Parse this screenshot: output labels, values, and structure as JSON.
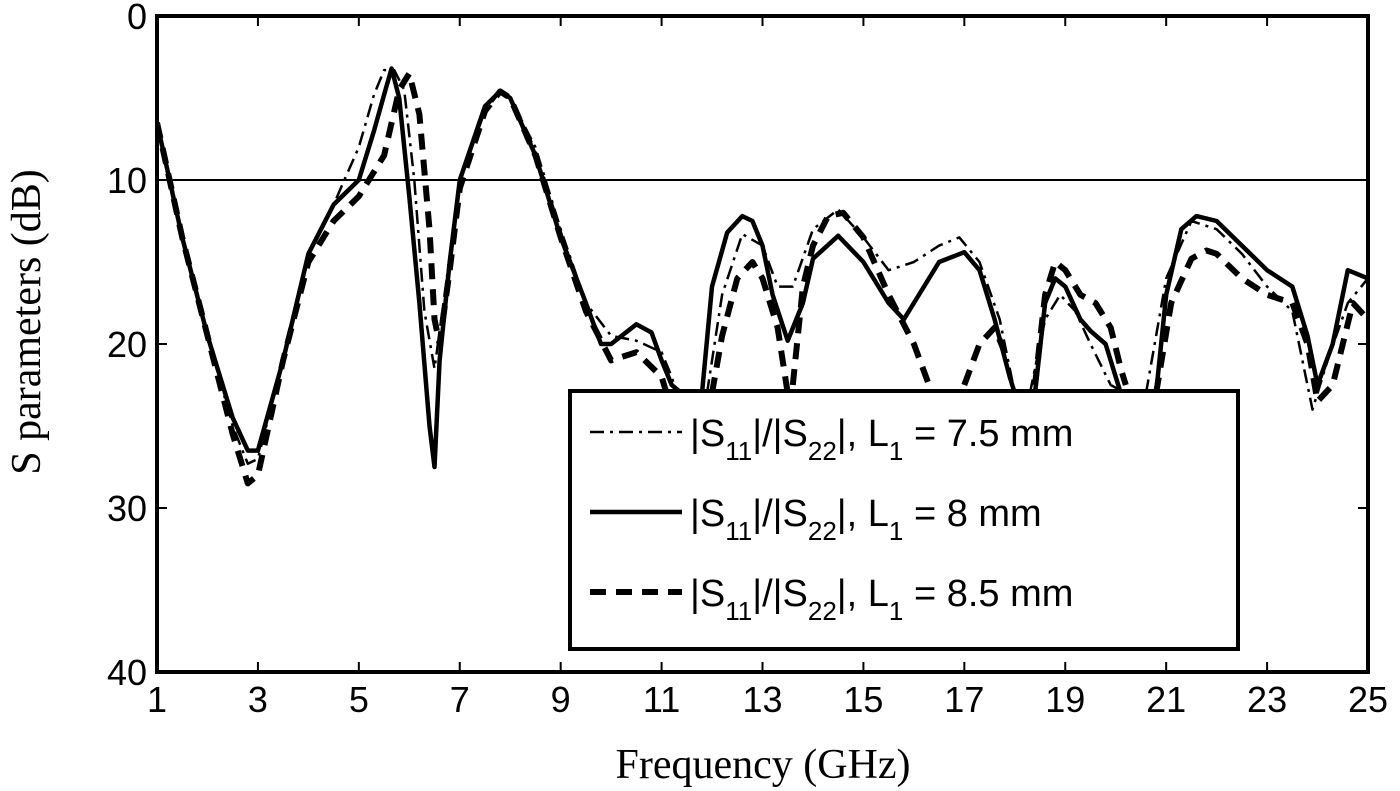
{
  "chart_data": {
    "type": "line",
    "xlabel": "Frequency (GHz)",
    "ylabel": "S  parameters (dB)",
    "xlim": [
      1,
      25
    ],
    "ylim": [
      0,
      40
    ],
    "y_axis_inverted": true,
    "xticks": [
      "1",
      "3",
      "5",
      "7",
      "9",
      "11",
      "13",
      "15",
      "17",
      "19",
      "21",
      "23",
      "25"
    ],
    "yticks": [
      "0",
      "10",
      "20",
      "30",
      "40"
    ],
    "reference_line_y": 10,
    "grid": false,
    "legend_position": "bottom-right",
    "series": [
      {
        "name": "|S11|/|S22|, L1 = 7.5 mm",
        "legend_parts": {
          "a": "|S",
          "a_sub": "11",
          "b": "|/|S",
          "b_sub": "22",
          "c": "|, L",
          "c_sub": "1",
          "d": " = 7.5 mm"
        },
        "style": "dashdot",
        "x": [
          1.0,
          1.5,
          2.0,
          2.5,
          2.8,
          3.0,
          3.5,
          4.0,
          4.5,
          5.0,
          5.3,
          5.5,
          5.7,
          5.9,
          6.1,
          6.3,
          6.5,
          6.7,
          7.0,
          7.5,
          7.8,
          8.0,
          8.5,
          9.0,
          9.5,
          10.0,
          10.5,
          11.0,
          11.2,
          11.3
        ],
        "y": [
          6.5,
          13.5,
          19.5,
          25.0,
          27.3,
          27.0,
          21.0,
          14.5,
          11.5,
          8.0,
          4.8,
          3.3,
          3.3,
          4.5,
          10.0,
          18.0,
          21.5,
          17.0,
          10.0,
          5.8,
          4.6,
          5.0,
          8.0,
          13.0,
          17.5,
          19.5,
          19.8,
          20.5,
          22.0,
          23.0
        ]
      },
      {
        "name": "|S11|/|S22|, L1 = 7.5 mm (continued)",
        "style": "dashdot",
        "x": [
          11.9,
          12.2,
          12.6,
          13.0,
          13.3,
          13.6,
          14.0,
          14.5,
          15.0,
          15.5,
          16.0,
          16.5,
          16.9,
          17.3,
          17.7,
          18.0
        ],
        "y": [
          23.0,
          17.0,
          13.3,
          14.0,
          16.5,
          16.5,
          13.0,
          11.8,
          13.5,
          15.5,
          15.0,
          14.0,
          13.5,
          15.0,
          18.5,
          23.0
        ]
      },
      {
        "name": "|S11|/|S22|, L1 = 7.5 mm (continued)",
        "style": "dashdot",
        "x": [
          18.3,
          18.6,
          18.9,
          19.2,
          19.5,
          19.9,
          20.2
        ],
        "y": [
          23.0,
          18.5,
          17.0,
          18.0,
          20.0,
          22.5,
          23.0
        ]
      },
      {
        "name": "|S11|/|S22|, L1 = 7.5 mm (continued)",
        "style": "dashdot",
        "x": [
          20.6,
          21.0,
          21.5,
          22.0,
          22.5,
          23.0,
          23.5,
          23.9,
          24.2,
          24.6,
          25.0
        ],
        "y": [
          23.0,
          16.0,
          12.5,
          13.0,
          14.5,
          16.5,
          18.0,
          24.0,
          21.0,
          17.5,
          16.0
        ]
      },
      {
        "name": "|S11|/|S22|, L1 = 8 mm",
        "legend_parts": {
          "a": "|S",
          "a_sub": "11",
          "b": "|/|S",
          "b_sub": "22",
          "c": "|, L",
          "c_sub": "1",
          "d": " = 8 mm"
        },
        "style": "solid",
        "x": [
          1.0,
          1.5,
          2.0,
          2.5,
          2.8,
          3.0,
          3.5,
          4.0,
          4.5,
          5.0,
          5.3,
          5.5,
          5.65,
          5.8,
          6.0,
          6.2,
          6.4,
          6.5,
          6.6,
          6.8,
          7.0,
          7.5,
          7.8,
          8.0,
          8.5,
          9.0,
          9.5,
          9.8,
          10.0,
          10.5,
          10.8,
          11.0,
          11.2,
          11.4
        ],
        "y": [
          6.5,
          13.5,
          19.5,
          24.5,
          26.5,
          26.5,
          21.0,
          14.5,
          11.5,
          10.0,
          7.0,
          4.8,
          3.2,
          5.0,
          11.0,
          17.5,
          25.0,
          27.5,
          21.0,
          15.0,
          10.0,
          5.5,
          4.6,
          5.0,
          8.5,
          13.5,
          17.5,
          20.0,
          20.0,
          18.8,
          19.3,
          21.0,
          22.5,
          23.0
        ]
      },
      {
        "name": "|S11|/|S22|, L1 = 8 mm (continued)",
        "style": "solid",
        "x": [
          11.8,
          12.0,
          12.3,
          12.6,
          12.8,
          13.0,
          13.2,
          13.5,
          13.8,
          14.0,
          14.5,
          15.0,
          15.5,
          15.8,
          16.0,
          16.5,
          17.0,
          17.3,
          17.6,
          17.9,
          18.0
        ],
        "y": [
          23.0,
          16.5,
          13.2,
          12.2,
          12.5,
          14.0,
          17.0,
          19.8,
          17.5,
          14.8,
          13.4,
          15.0,
          17.5,
          18.5,
          17.5,
          15.0,
          14.4,
          15.5,
          18.5,
          22.0,
          23.0
        ]
      },
      {
        "name": "|S11|/|S22|, L1 = 8 mm (continued)",
        "style": "solid",
        "x": [
          18.4,
          18.6,
          18.8,
          19.0,
          19.3,
          19.5,
          19.8,
          20.0,
          20.1
        ],
        "y": [
          23.0,
          17.5,
          16.0,
          16.5,
          18.5,
          19.2,
          20.0,
          22.0,
          23.0
        ]
      },
      {
        "name": "|S11|/|S22|, L1 = 8 mm (continued)",
        "style": "solid",
        "x": [
          20.8,
          21.0,
          21.3,
          21.6,
          22.0,
          22.5,
          23.0,
          23.5,
          23.8,
          24.0,
          24.3,
          24.6,
          25.0
        ],
        "y": [
          23.0,
          17.0,
          13.0,
          12.2,
          12.5,
          14.0,
          15.5,
          16.5,
          19.5,
          22.5,
          20.0,
          15.5,
          16.0
        ]
      },
      {
        "name": "|S11|/|S22|, L1 = 8.5 mm",
        "legend_parts": {
          "a": "|S",
          "a_sub": "11",
          "b": "|/|S",
          "b_sub": "22",
          "c": "|, L",
          "c_sub": "1",
          "d": " = 8.5 mm"
        },
        "style": "dashed",
        "x": [
          1.0,
          1.5,
          2.0,
          2.5,
          2.8,
          3.0,
          3.5,
          4.0,
          4.5,
          5.0,
          5.5,
          5.8,
          6.0,
          6.2,
          6.4,
          6.5,
          6.6,
          6.8,
          7.0,
          7.5,
          7.8,
          8.0,
          8.5,
          9.0,
          9.5,
          10.0,
          10.5,
          11.0,
          11.1
        ],
        "y": [
          6.5,
          13.5,
          19.5,
          25.5,
          28.5,
          28.0,
          21.0,
          15.0,
          12.5,
          11.0,
          8.5,
          4.5,
          3.5,
          6.0,
          13.0,
          18.5,
          20.0,
          15.5,
          10.5,
          5.8,
          4.6,
          5.0,
          8.5,
          13.5,
          18.0,
          21.0,
          20.5,
          22.0,
          23.0
        ]
      },
      {
        "name": "|S11|/|S22|, L1 = 8.5 mm (continued)",
        "style": "dashed",
        "x": [
          12.0,
          12.2,
          12.5,
          12.8,
          13.0,
          13.3,
          13.5
        ],
        "y": [
          23.0,
          19.5,
          16.0,
          15.0,
          16.0,
          19.0,
          23.0
        ]
      },
      {
        "name": "|S11|/|S22|, L1 = 8.5 mm (continued)",
        "style": "dashed",
        "x": [
          13.6,
          13.8,
          14.0,
          14.3,
          14.6,
          15.0,
          15.5,
          16.0,
          16.3
        ],
        "y": [
          22.5,
          16.5,
          14.0,
          12.2,
          12.0,
          13.5,
          17.0,
          20.0,
          22.5
        ]
      },
      {
        "name": "|S11|/|S22|, L1 = 8.5 mm (continued)",
        "style": "dashed",
        "x": [
          17.0,
          17.3,
          17.6,
          17.8
        ],
        "y": [
          22.5,
          20.0,
          19.0,
          20.5
        ]
      },
      {
        "name": "|S11|/|S22|, L1 = 8.5 mm (continued)",
        "style": "dashed",
        "x": [
          18.4,
          18.6,
          18.8,
          19.0,
          19.3,
          19.6,
          19.9,
          20.1,
          20.2
        ],
        "y": [
          22.5,
          17.0,
          15.0,
          15.5,
          17.0,
          17.5,
          19.0,
          21.5,
          22.5
        ]
      },
      {
        "name": "|S11|/|S22|, L1 = 8.5 mm (continued)",
        "style": "dashed",
        "x": [
          20.8,
          21.1,
          21.5,
          21.8,
          22.0,
          22.5,
          23.0,
          23.5,
          23.8,
          24.0,
          24.3,
          24.7,
          25.0
        ],
        "y": [
          23.0,
          17.5,
          14.8,
          14.3,
          14.5,
          16.0,
          17.0,
          17.5,
          20.0,
          23.5,
          22.5,
          17.5,
          18.5
        ]
      }
    ]
  }
}
